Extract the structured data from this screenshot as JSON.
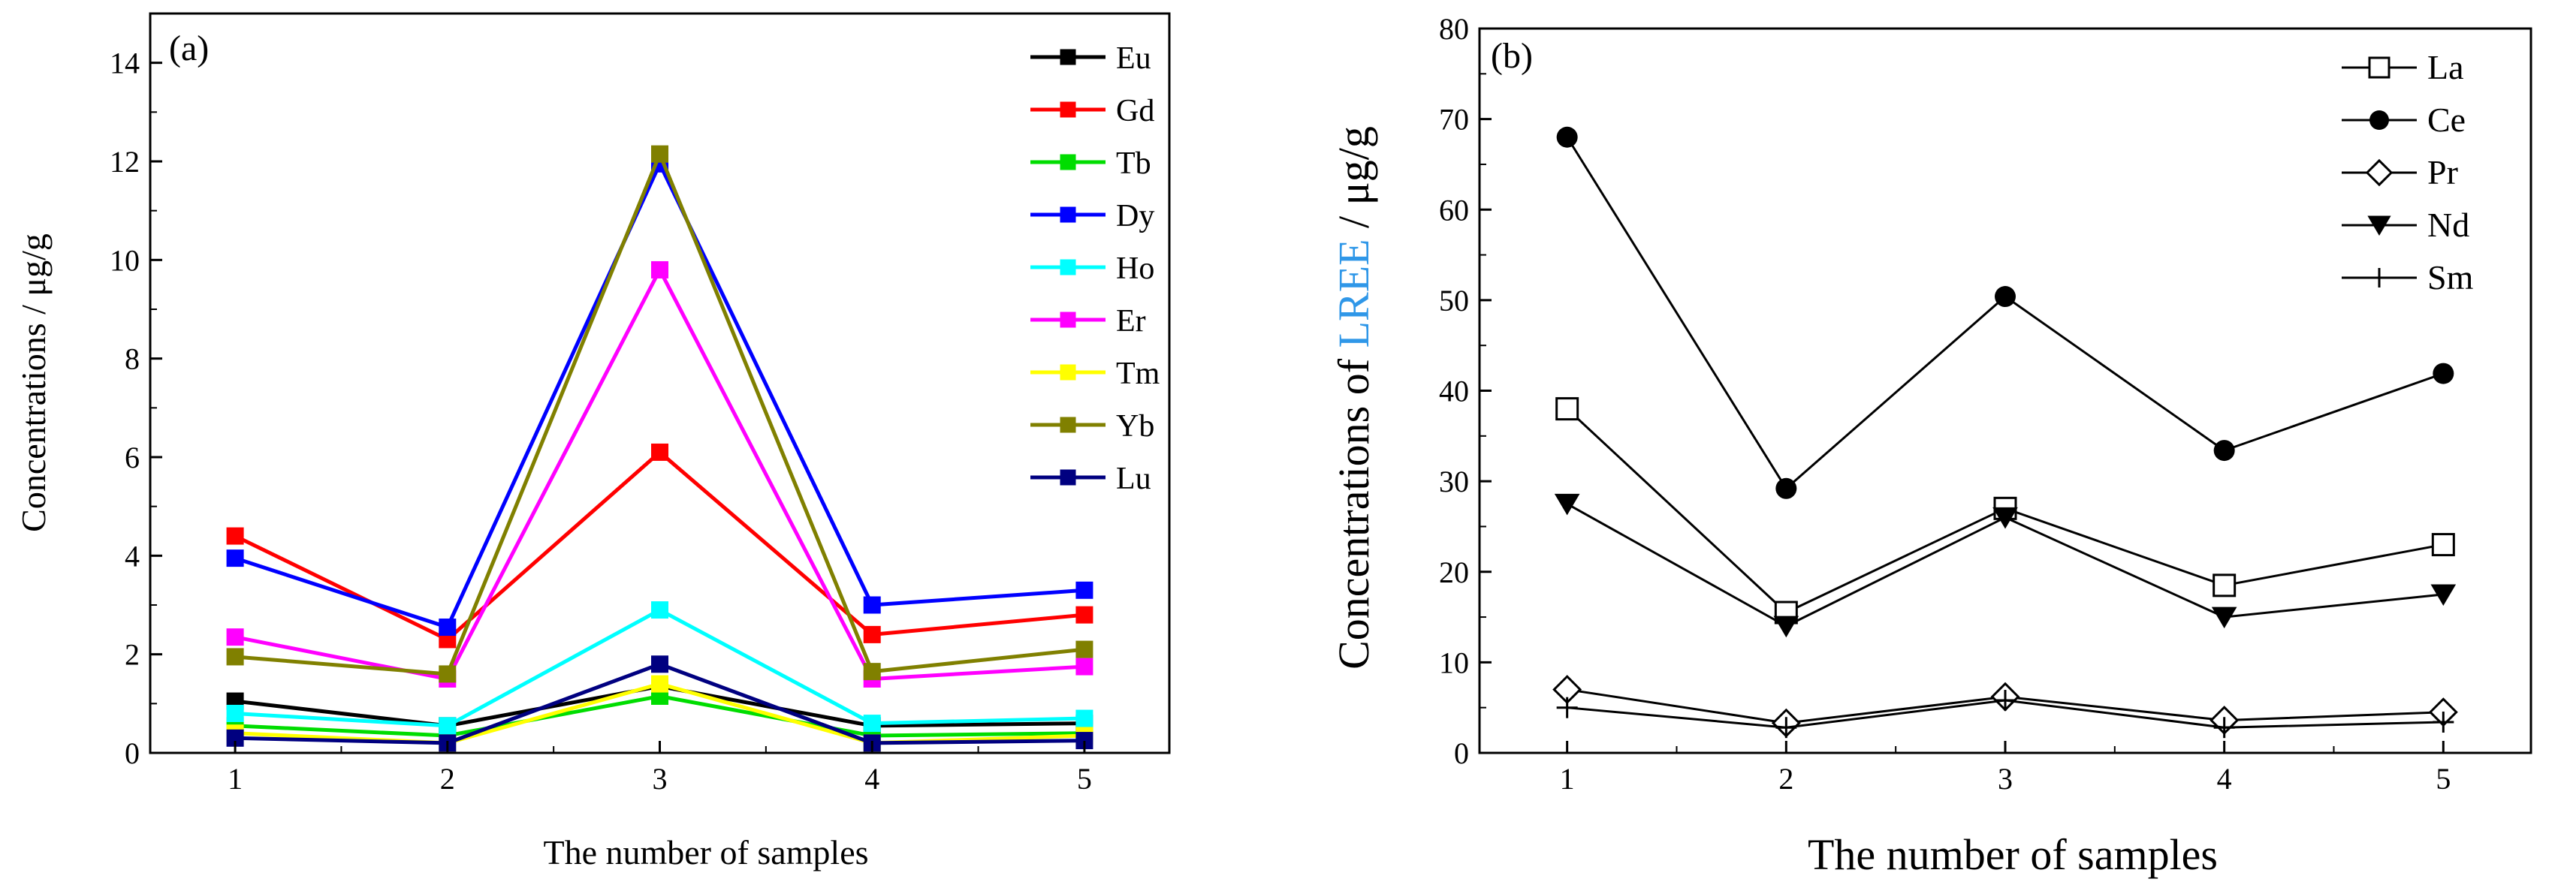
{
  "chart_data": [
    {
      "type": "line",
      "panel_label": "(a)",
      "title": "",
      "xlabel": "The number of samples",
      "ylabel": "Concentrations / μg/g",
      "x": [
        1,
        2,
        3,
        4,
        5
      ],
      "xlim": [
        0.6,
        5.4
      ],
      "ylim": [
        0,
        15
      ],
      "xticks": [
        "1",
        "2",
        "3",
        "4",
        "5"
      ],
      "yticks": [
        "0",
        "2",
        "4",
        "6",
        "8",
        "10",
        "12",
        "14"
      ],
      "legend_position": "top-right",
      "series": [
        {
          "name": "Eu",
          "color": "#000000",
          "marker": "square-filled",
          "values": [
            1.05,
            0.55,
            1.35,
            0.55,
            0.6
          ]
        },
        {
          "name": "Gd",
          "color": "#ff0000",
          "marker": "square-filled",
          "values": [
            4.4,
            2.3,
            6.1,
            2.4,
            2.8
          ]
        },
        {
          "name": "Tb",
          "color": "#00dd00",
          "marker": "square-filled",
          "values": [
            0.55,
            0.35,
            1.15,
            0.35,
            0.4
          ]
        },
        {
          "name": "Dy",
          "color": "#0000ff",
          "marker": "square-filled",
          "values": [
            3.95,
            2.55,
            11.95,
            3.0,
            3.3
          ]
        },
        {
          "name": "Ho",
          "color": "#00ffff",
          "marker": "square-filled",
          "values": [
            0.8,
            0.55,
            2.9,
            0.6,
            0.7
          ]
        },
        {
          "name": "Er",
          "color": "#ff00ff",
          "marker": "square-filled",
          "values": [
            2.35,
            1.5,
            9.8,
            1.5,
            1.75
          ]
        },
        {
          "name": "Tm",
          "color": "#ffff00",
          "marker": "square-filled",
          "values": [
            0.4,
            0.2,
            1.4,
            0.2,
            0.35
          ]
        },
        {
          "name": "Yb",
          "color": "#808000",
          "marker": "square-filled",
          "values": [
            1.95,
            1.6,
            12.15,
            1.65,
            2.1
          ]
        },
        {
          "name": "Lu",
          "color": "#000080",
          "marker": "square-filled",
          "values": [
            0.3,
            0.2,
            1.8,
            0.2,
            0.25
          ]
        }
      ]
    },
    {
      "type": "line",
      "panel_label": "(b)",
      "title": "",
      "xlabel": "The number of samples",
      "ylabel_prefix": "Concentrations of ",
      "ylabel_highlight": "LREE",
      "ylabel_highlight_color": "#2f97e8",
      "ylabel_suffix": " / μg/g",
      "x": [
        1,
        2,
        3,
        4,
        5
      ],
      "xlim": [
        0.6,
        5.4
      ],
      "ylim": [
        0,
        80
      ],
      "xticks": [
        "1",
        "2",
        "3",
        "4",
        "5"
      ],
      "yticks": [
        "0",
        "10",
        "20",
        "30",
        "40",
        "50",
        "60",
        "70",
        "80"
      ],
      "legend_position": "top-right",
      "series": [
        {
          "name": "La",
          "color": "#000000",
          "marker": "square-open",
          "values": [
            38,
            15.5,
            27,
            18.5,
            23
          ]
        },
        {
          "name": "Ce",
          "color": "#000000",
          "marker": "circle-filled",
          "values": [
            68,
            29.2,
            50.4,
            33.4,
            41.9
          ]
        },
        {
          "name": "Pr",
          "color": "#000000",
          "marker": "diamond-open",
          "values": [
            7,
            3.3,
            6.2,
            3.6,
            4.5
          ]
        },
        {
          "name": "Nd",
          "color": "#000000",
          "marker": "triangle-down-filled",
          "values": [
            27.5,
            14,
            26,
            15,
            17.5
          ]
        },
        {
          "name": "Sm",
          "color": "#000000",
          "marker": "plus",
          "values": [
            5,
            2.8,
            5.8,
            2.8,
            3.4
          ]
        }
      ]
    }
  ]
}
